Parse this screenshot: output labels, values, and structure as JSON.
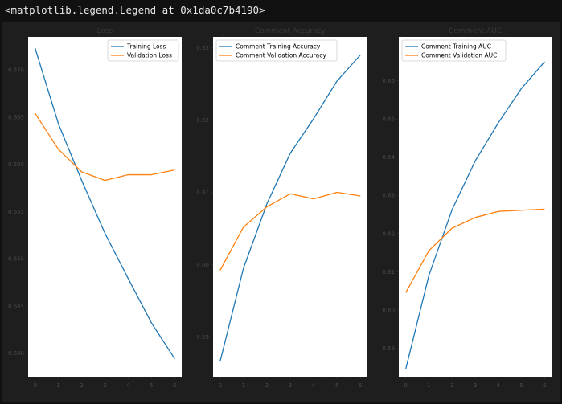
{
  "output_text": "<matplotlib.legend.Legend at 0x1da0c7b4190>",
  "colors": {
    "training": "#1f77b4",
    "validation": "#ff7f0e"
  },
  "chart_data": [
    {
      "type": "line",
      "title": "Loss",
      "x": [
        0,
        1,
        2,
        3,
        4,
        5,
        6
      ],
      "xlim": [
        -0.3,
        6.3
      ],
      "ylim": [
        0.6375,
        0.6735
      ],
      "yticks": [
        0.64,
        0.645,
        0.65,
        0.655,
        0.66,
        0.665,
        0.67
      ],
      "grid": false,
      "legend_position": "upper-right",
      "series": [
        {
          "name": "Training Loss",
          "values": [
            0.6723,
            0.6643,
            0.6583,
            0.6527,
            0.6479,
            0.6432,
            0.6394
          ]
        },
        {
          "name": "Validation Loss",
          "values": [
            0.6654,
            0.6616,
            0.6592,
            0.6583,
            0.6589,
            0.6589,
            0.6594
          ]
        }
      ]
    },
    {
      "type": "line",
      "title": "Comment Accuracy",
      "x": [
        0,
        1,
        2,
        3,
        4,
        5,
        6
      ],
      "xlim": [
        -0.3,
        6.3
      ],
      "ylim": [
        0.5845,
        0.6315
      ],
      "yticks": [
        0.59,
        0.6,
        0.61,
        0.62,
        0.63
      ],
      "grid": false,
      "legend_position": "upper-left",
      "series": [
        {
          "name": "Comment Training Accuracy",
          "values": [
            0.5866,
            0.5995,
            0.6084,
            0.6154,
            0.6202,
            0.6254,
            0.629
          ]
        },
        {
          "name": "Comment Validation Accuracy",
          "values": [
            0.5992,
            0.6052,
            0.608,
            0.6098,
            0.6091,
            0.61,
            0.6095
          ]
        }
      ]
    },
    {
      "type": "line",
      "title": "Comment AUC",
      "x": [
        0,
        1,
        2,
        3,
        4,
        5,
        6
      ],
      "xlim": [
        -0.3,
        6.3
      ],
      "ylim": [
        0.5825,
        0.6715
      ],
      "yticks": [
        0.59,
        0.6,
        0.61,
        0.62,
        0.63,
        0.64,
        0.65,
        0.66
      ],
      "grid": false,
      "legend_position": "upper-left",
      "series": [
        {
          "name": "Comment Training AUC",
          "values": [
            0.5845,
            0.609,
            0.6262,
            0.639,
            0.649,
            0.658,
            0.665
          ]
        },
        {
          "name": "Comment Validation AUC",
          "values": [
            0.6045,
            0.6155,
            0.6214,
            0.6242,
            0.6258,
            0.6261,
            0.6264
          ]
        }
      ]
    }
  ]
}
